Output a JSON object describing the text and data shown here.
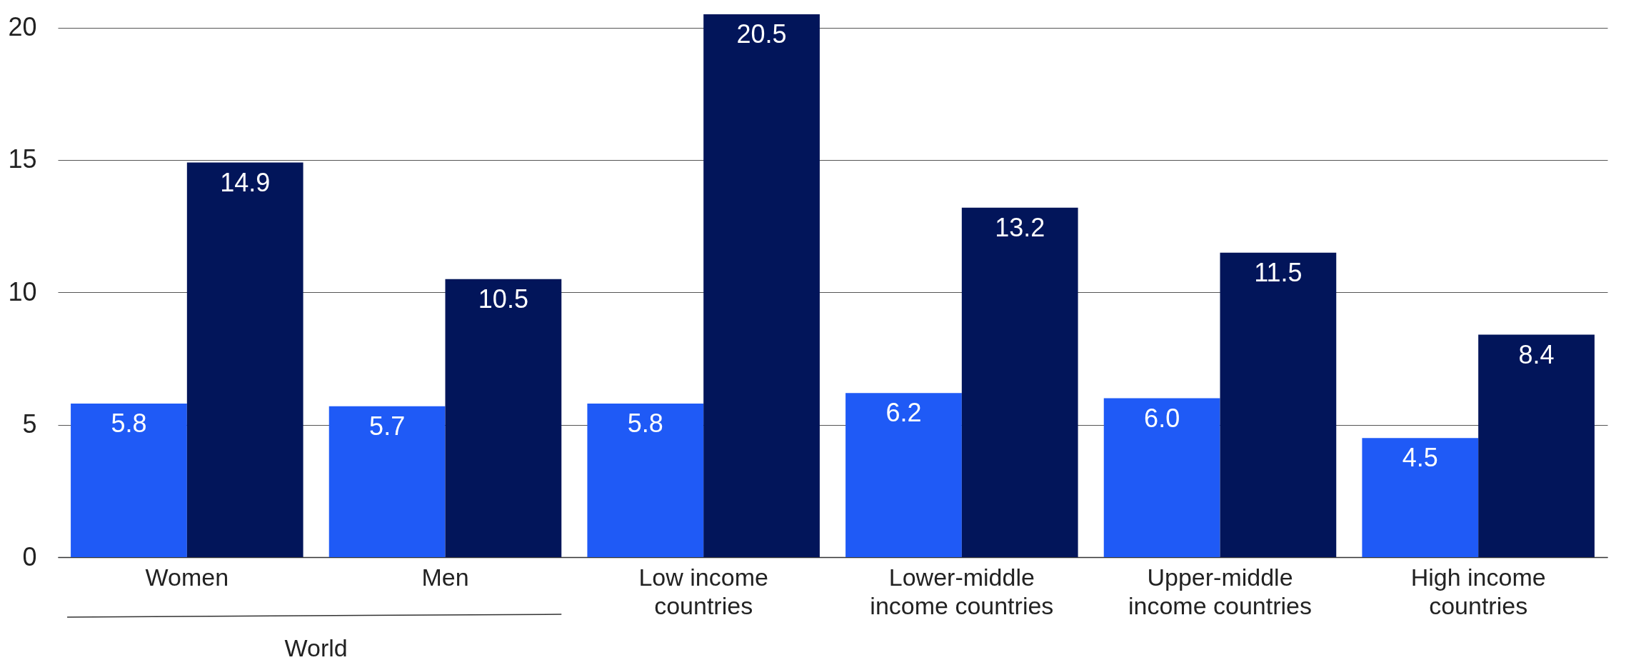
{
  "chart_data": {
    "type": "bar",
    "categories": [
      "Women",
      "Men",
      "Low income\ncountries",
      "Lower-middle\nincome countries",
      "Upper-middle\nincome countries",
      "High income\ncountries"
    ],
    "series": [
      {
        "color": "#1f5af6",
        "values": [
          5.8,
          5.7,
          5.8,
          6.2,
          6.0,
          4.5
        ],
        "value_labels": [
          "5.8",
          "5.7",
          "5.8",
          "6.2",
          "6.0",
          "4.5"
        ]
      },
      {
        "color": "#02155a",
        "values": [
          14.9,
          10.5,
          20.5,
          13.2,
          11.5,
          8.4
        ],
        "value_labels": [
          "14.9",
          "10.5",
          "20.5",
          "13.2",
          "11.5",
          "8.4"
        ]
      }
    ],
    "ylim": [
      0,
      20.5
    ],
    "yticks": [
      0,
      5,
      10,
      15,
      20
    ],
    "grid": "y",
    "legend": false,
    "annotations": [
      "World"
    ]
  }
}
